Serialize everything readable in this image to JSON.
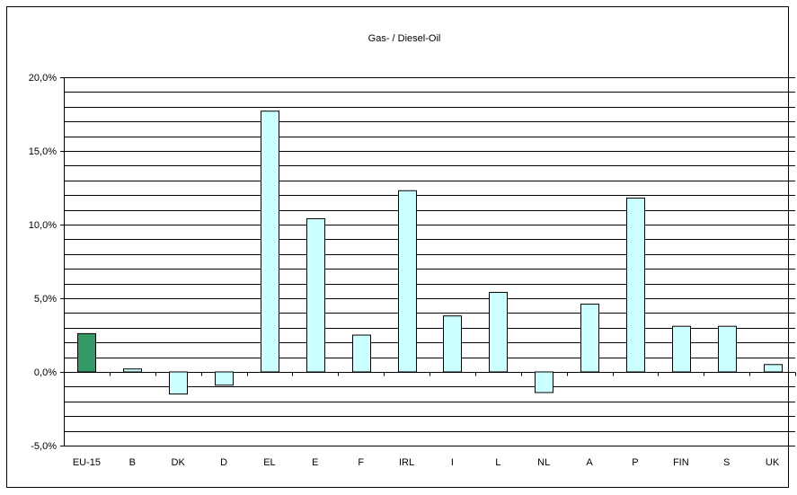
{
  "chart_data": {
    "type": "bar",
    "title": "Gas- / Diesel-Oil",
    "xlabel": "",
    "ylabel": "",
    "ylim": [
      -5,
      20
    ],
    "y_ticks": [
      "-5,0%",
      "0,0%",
      "5,0%",
      "10,0%",
      "15,0%",
      "20,0%"
    ],
    "y_tick_values": [
      -5,
      0,
      5,
      10,
      15,
      20
    ],
    "grid": true,
    "categories": [
      "EU-15",
      "B",
      "DK",
      "D",
      "EL",
      "E",
      "F",
      "IRL",
      "I",
      "L",
      "NL",
      "A",
      "P",
      "FIN",
      "S",
      "UK"
    ],
    "values": [
      2.6,
      0.2,
      -1.5,
      -0.9,
      17.7,
      10.4,
      2.5,
      12.3,
      3.8,
      5.4,
      -1.4,
      4.6,
      11.8,
      3.1,
      3.1,
      0.5
    ],
    "colors": {
      "highlight": "#339966",
      "bar": "#ccffff",
      "outline": "#000000"
    },
    "highlight_index": 0
  }
}
